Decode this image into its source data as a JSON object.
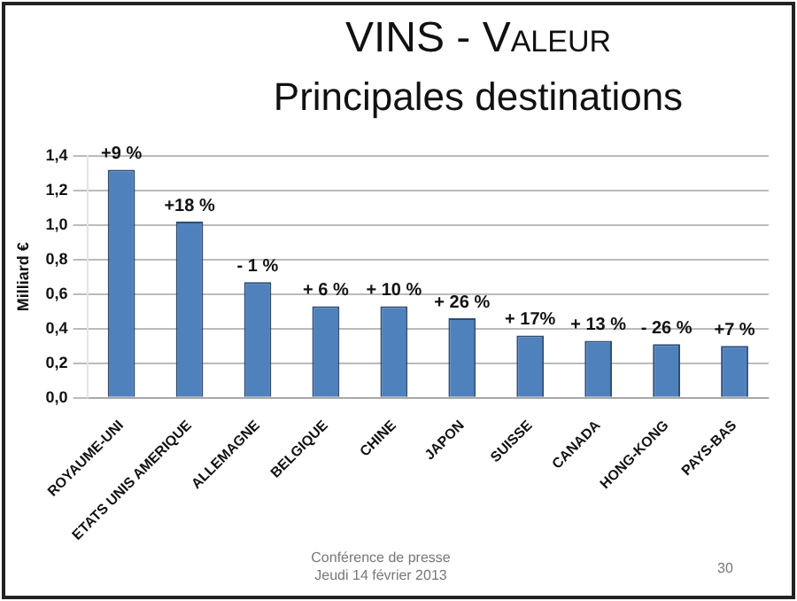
{
  "chart_data": {
    "type": "bar",
    "title": "VINS - Valeur",
    "subtitle": "Principales destinations",
    "ylabel": "Milliard €",
    "categories": [
      "ROYAUME-UNI",
      "ETATS UNIS AMERIQUE",
      "ALLEMAGNE",
      "BELGIQUE",
      "CHINE",
      "JAPON",
      "SUISSE",
      "CANADA",
      "HONG-KONG",
      "PAYS-BAS"
    ],
    "values": [
      1.32,
      1.02,
      0.67,
      0.53,
      0.53,
      0.46,
      0.36,
      0.33,
      0.31,
      0.3
    ],
    "color": "#4f81bd",
    "ylim": [
      0,
      1.4
    ],
    "yticks": [
      {
        "value": 0,
        "label": "0,0"
      },
      {
        "value": 0.2,
        "label": "0,2"
      },
      {
        "value": 0.4,
        "label": "0,4"
      },
      {
        "value": 0.6,
        "label": "0,6"
      },
      {
        "value": 0.8,
        "label": "0,8"
      },
      {
        "value": 1,
        "label": "1,0"
      },
      {
        "value": 1.2,
        "label": "1,2"
      },
      {
        "value": 1.4,
        "label": "1,4"
      }
    ],
    "grid": "y",
    "legend": false,
    "annotations": [
      "Conférence de presse\nJeudi 14 février 2013",
      "30",
      {
        "text": "+9 %",
        "x": "ROYAUME-UNI",
        "y": 1.32
      },
      {
        "text": "+18 %",
        "x": "ETATS UNIS AMERIQUE",
        "y": 1.02
      },
      {
        "text": "- 1 %",
        "x": "ALLEMAGNE",
        "y": 0.67
      },
      {
        "text": "+ 6 %",
        "x": "BELGIQUE",
        "y": 0.53
      },
      {
        "text": "+ 10 %",
        "x": "CHINE",
        "y": 0.53
      },
      {
        "text": "+ 26 %",
        "x": "JAPON",
        "y": 0.46
      },
      {
        "text": "+ 17%",
        "x": "SUISSE",
        "y": 0.36
      },
      {
        "text": "+ 13 %",
        "x": "CANADA",
        "y": 0.33
      },
      {
        "text": "- 26 %",
        "x": "HONG-KONG",
        "y": 0.31
      },
      {
        "text": "+7 %",
        "x": "PAYS-BAS",
        "y": 0.3
      }
    ]
  }
}
